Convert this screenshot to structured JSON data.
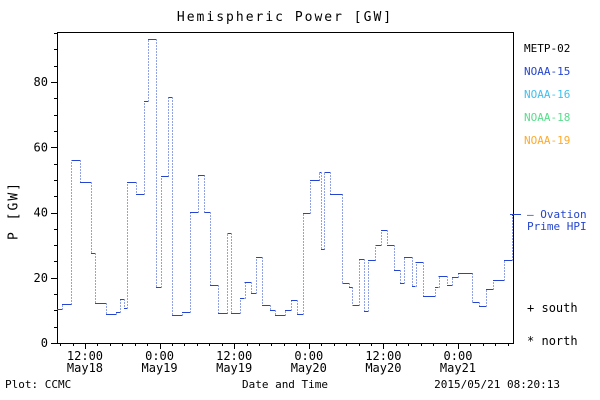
{
  "title": "Hemispheric Power [GW]",
  "footer": {
    "plot_credit": "Plot: CCMC",
    "xlabel": "Date and Time",
    "timestamp": "2015/05/21 08:20:13"
  },
  "colors": {
    "line_blue": "#2545d0",
    "axis_black": "#000000",
    "background": "#ffffff"
  },
  "legend": {
    "satellites": [
      {
        "label": "METP-02",
        "color": "#000000"
      },
      {
        "label": "NOAA-15",
        "color": "#2545d0"
      },
      {
        "label": "NOAA-16",
        "color": "#3fc0f0"
      },
      {
        "label": "NOAA-18",
        "color": "#57de8b"
      },
      {
        "label": "NOAA-19",
        "color": "#ffaa2a"
      }
    ],
    "ovation": {
      "line1": "– Ovation",
      "line2": "Prime HPI",
      "color": "#2545d0"
    },
    "hemisphere_markers": [
      {
        "symbol": "+",
        "label": "south"
      },
      {
        "symbol": "*",
        "label": "north"
      }
    ]
  },
  "chart_data": {
    "type": "line",
    "style": "step-with-dotted-risers",
    "title": "Hemispheric Power [GW]",
    "xlabel": "Date and Time",
    "ylabel": "P [GW]",
    "ylim": [
      0,
      95.3
    ],
    "yticks": [
      0,
      20,
      40,
      60,
      80
    ],
    "y_minor_step": 5,
    "grid": false,
    "legend_position": "right-outside",
    "x_total_hours": 73.35,
    "x_start": "May18 07:30",
    "x_end": "May21 08:50",
    "x_major_ticks": [
      {
        "hour": 4.5,
        "time": "12:00",
        "date": "May18"
      },
      {
        "hour": 16.5,
        "time": "0:00",
        "date": "May19"
      },
      {
        "hour": 28.5,
        "time": "12:00",
        "date": "May19"
      },
      {
        "hour": 40.5,
        "time": "0:00",
        "date": "May20"
      },
      {
        "hour": 52.5,
        "time": "12:00",
        "date": "May20"
      },
      {
        "hour": 64.5,
        "time": "0:00",
        "date": "May21"
      }
    ],
    "x_minor_start_hour": 0.5,
    "x_minor_step_hours": 2,
    "series": [
      {
        "name": "NOAA-15 Ovation Prime HPI",
        "color": "#2545d0",
        "units": "GW",
        "points_hour_gw": [
          [
            0,
            10.3
          ],
          [
            0.8,
            11.9
          ],
          [
            2.3,
            56.2
          ],
          [
            3.7,
            49.2
          ],
          [
            5.5,
            27.5
          ],
          [
            6.1,
            12.4
          ],
          [
            7.9,
            8.8
          ],
          [
            9.5,
            9.6
          ],
          [
            10.1,
            13.6
          ],
          [
            10.8,
            10.7
          ],
          [
            11.3,
            49.4
          ],
          [
            12.7,
            45.6
          ],
          [
            14.0,
            74.2
          ],
          [
            14.6,
            93.3
          ],
          [
            15.9,
            17.2
          ],
          [
            16.7,
            51.3
          ],
          [
            17.9,
            75.5
          ],
          [
            18.5,
            8.7
          ],
          [
            20.1,
            9.6
          ],
          [
            21.4,
            40.2
          ],
          [
            22.7,
            51.4
          ],
          [
            23.7,
            40.2
          ],
          [
            24.6,
            17.8
          ],
          [
            25.9,
            9.1
          ],
          [
            27.4,
            33.6
          ],
          [
            28.0,
            9.1
          ],
          [
            29.4,
            13.7
          ],
          [
            30.2,
            18.8
          ],
          [
            31.2,
            15.2
          ],
          [
            32.0,
            26.4
          ],
          [
            33.0,
            11.6
          ],
          [
            34.3,
            10.1
          ],
          [
            35.1,
            8.6
          ],
          [
            36.7,
            10.1
          ],
          [
            37.6,
            13.2
          ],
          [
            38.6,
            8.8
          ],
          [
            39.6,
            39.7
          ],
          [
            40.7,
            50.1
          ],
          [
            42.2,
            52.5
          ],
          [
            42.5,
            28.7
          ],
          [
            43.0,
            52.5
          ],
          [
            43.9,
            45.8
          ],
          [
            45.9,
            18.5
          ],
          [
            47.0,
            17.2
          ],
          [
            47.5,
            11.6
          ],
          [
            48.6,
            25.9
          ],
          [
            49.4,
            9.8
          ],
          [
            50.0,
            25.4
          ],
          [
            51.2,
            30.0
          ],
          [
            52.1,
            34.6
          ],
          [
            53.1,
            30.0
          ],
          [
            54.2,
            22.4
          ],
          [
            55.2,
            18.3
          ],
          [
            55.8,
            26.4
          ],
          [
            57.1,
            17.5
          ],
          [
            57.7,
            24.9
          ],
          [
            58.9,
            14.4
          ],
          [
            60.8,
            17.1
          ],
          [
            61.4,
            20.5
          ],
          [
            62.7,
            17.8
          ],
          [
            63.5,
            20.1
          ],
          [
            64.5,
            21.5
          ],
          [
            66.8,
            12.6
          ],
          [
            67.9,
            11.3
          ],
          [
            69.0,
            16.4
          ],
          [
            70.1,
            19.3
          ],
          [
            71.9,
            25.4
          ],
          [
            73.2,
            39.2
          ]
        ]
      }
    ]
  }
}
